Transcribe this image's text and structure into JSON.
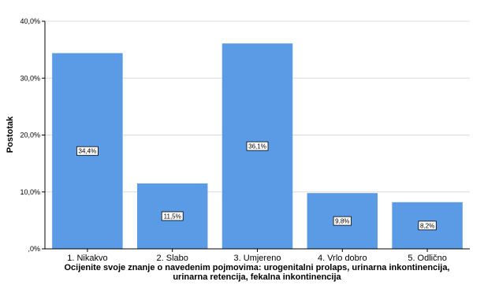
{
  "chart_data": {
    "type": "bar",
    "categories": [
      "1. Nikakvo",
      "2. Slabo",
      "3. Umjereno",
      "4. Vrlo dobro",
      "5. Odlično"
    ],
    "values": [
      34.4,
      11.5,
      36.1,
      9.8,
      8.2
    ],
    "value_labels": [
      "34,4%",
      "11,5%",
      "36,1%",
      "9,8%",
      "8,2%"
    ],
    "ylabel": "Postotak",
    "xlabel_lines": [
      "Ocijenite svoje znanje o navedenim pojmovima: urogenitalni prolaps, urinarna inkontinencija,",
      "urinarna retencija, fekalna inkontinencija"
    ],
    "ylim": [
      0,
      40
    ],
    "yticks": [
      0,
      10,
      20,
      30,
      40
    ],
    "ytick_labels": [
      ",0%",
      "10,0%",
      "20,0%",
      "30,0%",
      "40,0%"
    ],
    "grid": "horizontal",
    "bar_color": "#5b9be6"
  }
}
